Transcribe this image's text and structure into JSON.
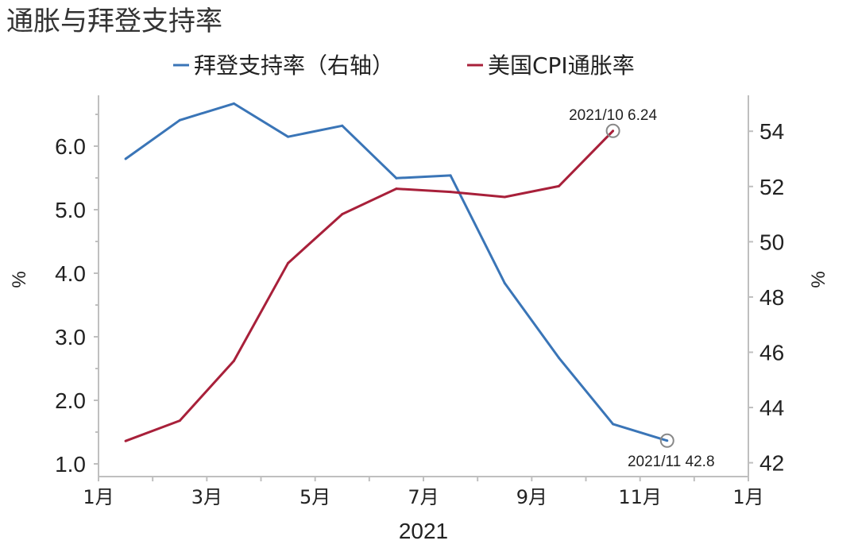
{
  "chart_data": {
    "type": "line",
    "title": "通胀与拜登支持率",
    "xlabel": "2021",
    "x_tick_labels": [
      "1月",
      "3月",
      "5月",
      "7月",
      "9月",
      "11月",
      "1月"
    ],
    "ylabel_left": "%",
    "ylabel_right": "%",
    "y_left_ticks": [
      "1.0",
      "2.0",
      "3.0",
      "4.0",
      "5.0",
      "6.0"
    ],
    "y_right_ticks": [
      "42",
      "44",
      "46",
      "48",
      "50",
      "52",
      "54"
    ],
    "ylim_left": [
      0.8,
      6.8
    ],
    "ylim_right": [
      41.5,
      55.3
    ],
    "grid": false,
    "legend_position": "top",
    "series": [
      {
        "name": "拜登支持率（右轴）",
        "axis": "right",
        "color": "#3a75b7",
        "x": [
          "2021-01",
          "2021-02",
          "2021-03",
          "2021-04",
          "2021-05",
          "2021-06",
          "2021-07",
          "2021-08",
          "2021-09",
          "2021-10",
          "2021-11"
        ],
        "values": [
          53.0,
          54.4,
          55.0,
          53.8,
          54.2,
          52.3,
          52.4,
          48.5,
          45.8,
          43.4,
          42.8
        ]
      },
      {
        "name": "美国CPI通胀率",
        "axis": "left",
        "color": "#a8203a",
        "x": [
          "2021-01",
          "2021-02",
          "2021-03",
          "2021-04",
          "2021-05",
          "2021-06",
          "2021-07",
          "2021-08",
          "2021-09",
          "2021-10"
        ],
        "values": [
          1.36,
          1.68,
          2.62,
          4.16,
          4.93,
          5.33,
          5.28,
          5.2,
          5.37,
          6.24
        ]
      }
    ],
    "annotations": [
      {
        "series": 1,
        "x": "2021-10",
        "value": 6.24,
        "text": "2021/10 6.24"
      },
      {
        "series": 0,
        "x": "2021-11",
        "value": 42.8,
        "text": "2021/11 42.8"
      }
    ]
  }
}
